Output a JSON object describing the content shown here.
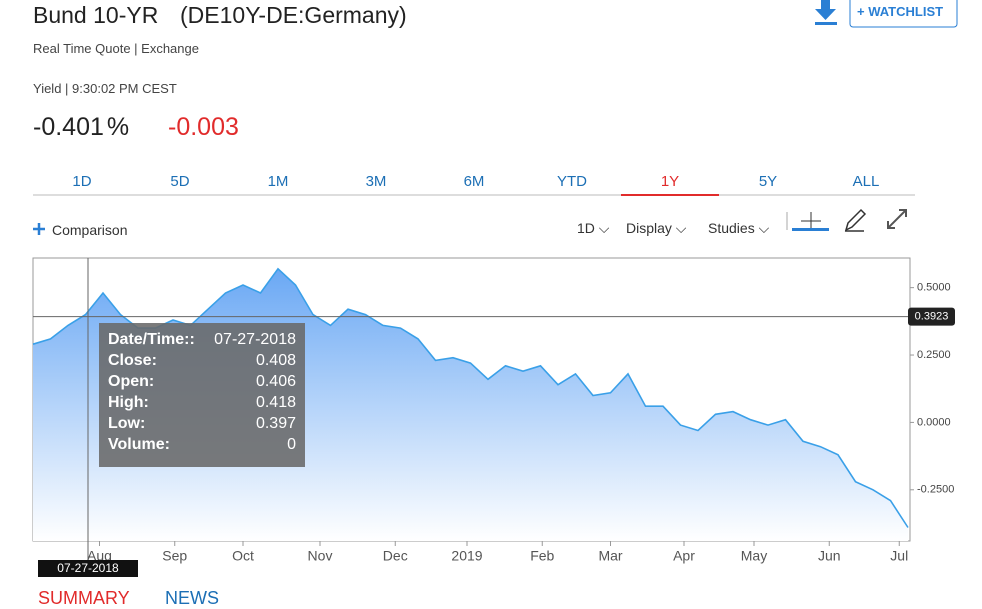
{
  "header": {
    "title": "Bund 10-YR",
    "symbol": "(DE10Y-DE:Germany)",
    "watchlist": "+ WATCHLIST",
    "subtitle": "Real Time Quote | Exchange"
  },
  "quote": {
    "label": "Yield | 9:30:02 PM CEST",
    "last": "-0.401",
    "unit": "%",
    "change": "-0.003"
  },
  "tabs": [
    "1D",
    "5D",
    "1M",
    "3M",
    "6M",
    "YTD",
    "1Y",
    "5Y",
    "ALL"
  ],
  "active_tab": 6,
  "toolbar": {
    "comparison": "Comparison",
    "interval": "1D",
    "display": "Display",
    "studies": "Studies"
  },
  "chart_data": {
    "type": "line",
    "color": "#3aa0e8",
    "values": [
      0.29,
      0.31,
      0.36,
      0.4,
      0.48,
      0.4,
      0.35,
      0.35,
      0.38,
      0.36,
      0.42,
      0.48,
      0.51,
      0.48,
      0.57,
      0.51,
      0.4,
      0.36,
      0.42,
      0.4,
      0.36,
      0.35,
      0.31,
      0.23,
      0.24,
      0.22,
      0.16,
      0.21,
      0.19,
      0.21,
      0.14,
      0.18,
      0.1,
      0.11,
      0.18,
      0.06,
      0.06,
      -0.01,
      -0.03,
      0.03,
      0.04,
      0.01,
      -0.01,
      0.01,
      -0.07,
      -0.09,
      -0.12,
      -0.22,
      -0.25,
      -0.29,
      -0.39
    ],
    "xlim": [
      0,
      50
    ],
    "xticks": [
      {
        "value": 3.8,
        "label": "Aug"
      },
      {
        "value": 8.1,
        "label": "Sep"
      },
      {
        "value": 12,
        "label": "Oct"
      },
      {
        "value": 16.4,
        "label": "Nov"
      },
      {
        "value": 20.7,
        "label": "Dec"
      },
      {
        "value": 24.8,
        "label": "2019"
      },
      {
        "value": 29.1,
        "label": "Feb"
      },
      {
        "value": 33,
        "label": "Mar"
      },
      {
        "value": 37.2,
        "label": "Apr"
      },
      {
        "value": 41.2,
        "label": "May"
      },
      {
        "value": 45.5,
        "label": "Jun"
      },
      {
        "value": 49.5,
        "label": "Jul"
      }
    ],
    "ylim": [
      -0.44,
      0.61
    ],
    "yticks": [
      {
        "value": 0.5,
        "label": "0.5000"
      },
      {
        "value": 0.25,
        "label": "0.2500"
      },
      {
        "value": 0,
        "label": "0.0000"
      },
      {
        "value": -0.25,
        "label": "-0.2500"
      }
    ],
    "crosshair": {
      "value": 0.3923,
      "label": "0.3923"
    },
    "cursor_date": "07-27-2018"
  },
  "tooltip": [
    [
      "Date/Time::",
      "07-27-2018"
    ],
    [
      "Close:",
      "0.408"
    ],
    [
      "Open:",
      "0.406"
    ],
    [
      "High:",
      "0.418"
    ],
    [
      "Low:",
      "0.397"
    ],
    [
      "Volume:",
      "0"
    ]
  ],
  "nav": [
    "SUMMARY",
    "NEWS"
  ]
}
